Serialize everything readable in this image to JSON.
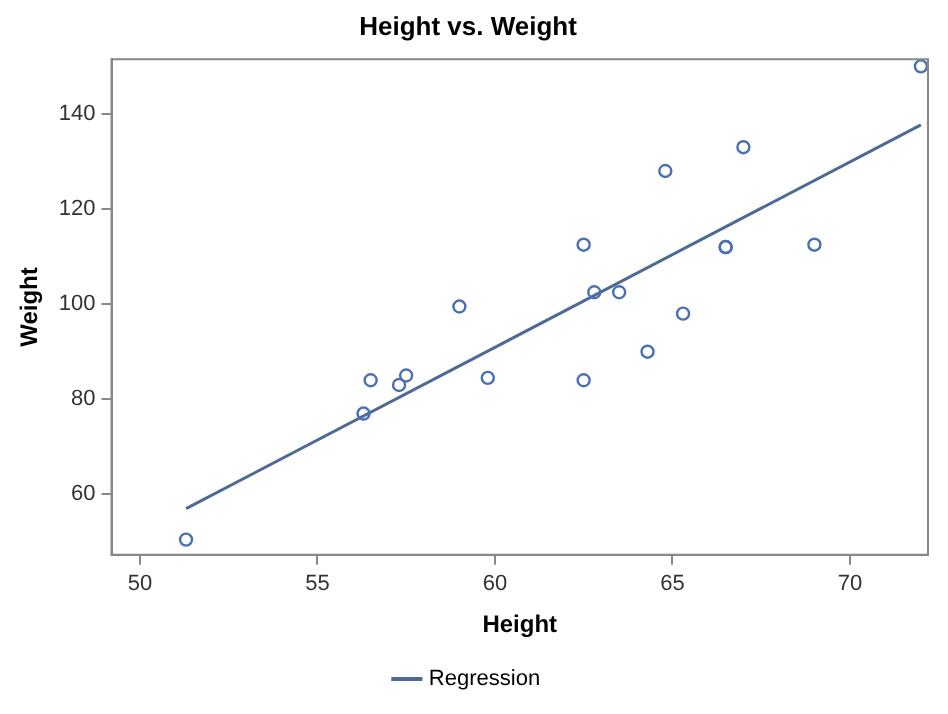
{
  "chart_data": {
    "type": "scatter",
    "title": "Height vs. Weight",
    "xlabel": "Height",
    "ylabel": "Weight",
    "xlim": [
      49.2,
      72.2
    ],
    "xticks": [
      50,
      55,
      60,
      65,
      70
    ],
    "ylim": [
      47.3,
      151.5
    ],
    "yticks": [
      60,
      80,
      100,
      120,
      140
    ],
    "grid": false,
    "legend": "bottom",
    "series": [
      {
        "color": "#4a6fb5",
        "marker": "circle",
        "x": [
          69.0,
          56.5,
          65.3,
          62.8,
          63.5,
          57.3,
          59.8,
          62.5,
          62.5,
          59.0,
          51.3,
          64.3,
          56.3,
          66.5,
          72.0,
          64.8,
          67.0,
          57.5,
          66.5
        ],
        "values": [
          112.5,
          84.0,
          98.0,
          102.5,
          102.5,
          83.0,
          84.5,
          112.5,
          84.0,
          99.5,
          50.5,
          90.0,
          77.0,
          112.0,
          150.0,
          128.0,
          133.0,
          85.0,
          112.0
        ]
      },
      {
        "type": "line",
        "name": "Regression",
        "color": "#4e6a94",
        "marker": "none",
        "line_style": "solid",
        "x": [
          51.3,
          72.0
        ],
        "values": [
          57.0,
          137.7
        ]
      }
    ]
  }
}
